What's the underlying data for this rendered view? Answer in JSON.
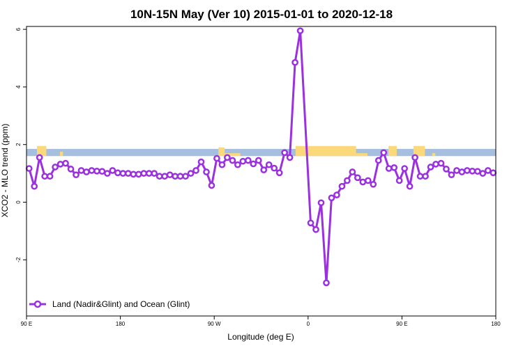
{
  "chart_data": {
    "type": "line",
    "title": "10N-15N May (Ver 10)   2015-01-01 to 2020-12-18",
    "xlabel": "Longitude (deg E)",
    "ylabel": "XCO2 - MLO trend (ppm)",
    "x_ticks": [
      {
        "value": 90,
        "label": "90 E"
      },
      {
        "value": 180,
        "label": "180"
      },
      {
        "value": 270,
        "label": "90 W"
      },
      {
        "value": 360,
        "label": "0"
      },
      {
        "value": 450,
        "label": "90 E"
      },
      {
        "value": 540,
        "label": "180"
      }
    ],
    "y_ticks": [
      {
        "value": -2,
        "label": "-2"
      },
      {
        "value": 0,
        "label": "0"
      },
      {
        "value": 2,
        "label": "2"
      },
      {
        "value": 4,
        "label": "4"
      },
      {
        "value": 6,
        "label": "6"
      }
    ],
    "xlim": [
      90,
      540
    ],
    "ylim": [
      -3.95,
      6.1
    ],
    "grid": false,
    "legend_position": "bottom-left",
    "land_strip": {
      "y_range": [
        1.6,
        1.85
      ],
      "ocean_color": "#a7bfdf",
      "land_color": "#fbd97a",
      "land_segments": [
        {
          "lon_start": 100,
          "lon_end": 109,
          "y_top": 1.95
        },
        {
          "lon_start": 122,
          "lon_end": 125,
          "y_top": 1.75
        },
        {
          "lon_start": 274,
          "lon_end": 280,
          "y_top": 1.9
        },
        {
          "lon_start": 280,
          "lon_end": 295,
          "y_top": 1.7
        },
        {
          "lon_start": 348,
          "lon_end": 406,
          "y_top": 1.95
        },
        {
          "lon_start": 406,
          "lon_end": 417,
          "y_top": 1.7
        },
        {
          "lon_start": 437,
          "lon_end": 445,
          "y_top": 1.95
        },
        {
          "lon_start": 461,
          "lon_end": 472,
          "y_top": 1.95
        },
        {
          "lon_start": 479,
          "lon_end": 482,
          "y_top": 1.7
        }
      ]
    },
    "series": [
      {
        "name": "Land (Nadir&Glint) and Ocean (Glint)",
        "color": "#9b30e0",
        "x": [
          92.5,
          97.5,
          102.5,
          107.5,
          112.5,
          117.5,
          122.5,
          127.5,
          132.5,
          137.5,
          142.5,
          147.5,
          152.5,
          157.5,
          162.5,
          167.5,
          172.5,
          177.5,
          182.5,
          187.5,
          192.5,
          197.5,
          202.5,
          207.5,
          212.5,
          217.5,
          222.5,
          227.5,
          232.5,
          237.5,
          242.5,
          247.5,
          252.5,
          257.5,
          262.5,
          267.5,
          272.5,
          277.5,
          282.5,
          287.5,
          292.5,
          297.5,
          302.5,
          307.5,
          312.5,
          317.5,
          322.5,
          327.5,
          332.5,
          337.5,
          342.5,
          347.5,
          352.5,
          357.5,
          362.5,
          367.5,
          372.5,
          377.5,
          382.5,
          387.5,
          392.5,
          397.5,
          402.5,
          407.5,
          412.5,
          417.5,
          422.5,
          427.5,
          432.5,
          437.5,
          442.5,
          447.5,
          452.5,
          457.5,
          462.5,
          467.5,
          472.5,
          477.5,
          482.5,
          487.5,
          492.5,
          497.5,
          502.5,
          507.5,
          512.5,
          517.5,
          522.5,
          527.5,
          532.5,
          537.5
        ],
        "y": [
          1.17,
          0.55,
          1.55,
          0.9,
          0.9,
          1.22,
          1.32,
          1.35,
          1.15,
          0.95,
          1.1,
          1.05,
          1.1,
          1.08,
          1.07,
          1.0,
          1.1,
          1.02,
          1.0,
          1.0,
          0.97,
          0.97,
          1.0,
          1.0,
          1.0,
          0.9,
          0.9,
          0.95,
          0.9,
          0.9,
          0.9,
          1.0,
          1.1,
          1.4,
          1.05,
          0.58,
          1.52,
          1.3,
          1.55,
          1.45,
          1.3,
          1.42,
          1.45,
          1.33,
          1.45,
          1.12,
          1.3,
          1.18,
          1.02,
          1.72,
          1.55,
          4.85,
          5.95,
          null,
          -0.72,
          -0.95,
          -0.02,
          -2.8,
          0.15,
          0.25,
          0.55,
          0.75,
          1.05,
          0.85,
          0.7,
          0.75,
          0.62,
          1.45,
          1.72,
          1.17,
          1.2,
          0.75,
          1.17,
          0.55,
          1.55,
          0.9,
          0.9,
          1.22,
          1.32,
          1.35,
          1.15,
          0.95,
          1.1,
          1.05,
          1.1,
          1.08,
          1.07,
          1.0,
          1.1,
          1.02
        ]
      }
    ]
  }
}
